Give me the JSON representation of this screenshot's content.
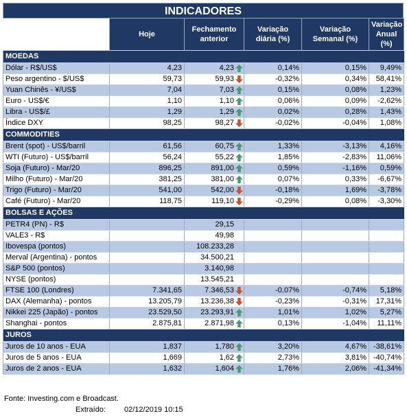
{
  "title": "INDICADORES",
  "headers": {
    "hoje": "Hoje",
    "fechamento": "Fechamento anterior",
    "var_diaria": "Variação diária (%)",
    "var_semanal": "Variação Semanal (%)",
    "var_anual": "Variação Anual (%)"
  },
  "colors": {
    "header_bg": "#1f3864",
    "shade": "#b8c9e3",
    "up": "#4a9a74",
    "down": "#c8502a"
  },
  "sections": [
    {
      "name": "MOEDAS",
      "rows": [
        {
          "label": "Dólar - R$/US$",
          "hoje": "4,23",
          "fech": "4,23",
          "dir": "up",
          "diaria": "0,14%",
          "semanal": "0,15%",
          "anual": "9,49%"
        },
        {
          "label": "Peso argentino - $/US$",
          "hoje": "59,73",
          "fech": "59,93",
          "dir": "down",
          "diaria": "-0,32%",
          "semanal": "0,34%",
          "anual": "58,41%"
        },
        {
          "label": "Yuan Chinês - ¥/US$",
          "hoje": "7,04",
          "fech": "7,03",
          "dir": "up",
          "diaria": "0,15%",
          "semanal": "0,08%",
          "anual": "1,23%"
        },
        {
          "label": "Euro - US$/€",
          "hoje": "1,10",
          "fech": "1,10",
          "dir": "up",
          "diaria": "0,06%",
          "semanal": "0,09%",
          "anual": "-2,62%"
        },
        {
          "label": "Libra - US$/£",
          "hoje": "1,29",
          "fech": "1,29",
          "dir": "up",
          "diaria": "0,02%",
          "semanal": "0,28%",
          "anual": "1,43%"
        },
        {
          "label": "Índice DXY",
          "hoje": "98,25",
          "fech": "98,27",
          "dir": "down",
          "diaria": "-0,02%",
          "semanal": "-0,04%",
          "anual": "1,08%"
        }
      ]
    },
    {
      "name": "COMMODITIES",
      "rows": [
        {
          "label": "Brent (spot) - US$/barril",
          "hoje": "61,56",
          "fech": "60,75",
          "dir": "up",
          "diaria": "1,33%",
          "semanal": "-3,13%",
          "anual": "4,16%"
        },
        {
          "label": "WTI (Futuro) - US$/barril",
          "hoje": "56,24",
          "fech": "55,22",
          "dir": "up",
          "diaria": "1,85%",
          "semanal": "-2,83%",
          "anual": "11,06%"
        },
        {
          "label": "Soja (Futuro) - Mar/20",
          "hoje": "896,25",
          "fech": "891,00",
          "dir": "up",
          "diaria": "0,59%",
          "semanal": "-1,16%",
          "anual": "0,59%"
        },
        {
          "label": "Milho (Futuro) - Mar/20",
          "hoje": "381,25",
          "fech": "381,00",
          "dir": "up",
          "diaria": "0,07%",
          "semanal": "0,33%",
          "anual": "-6,67%"
        },
        {
          "label": "Trigo (Futuro) - Mar/20",
          "hoje": "541,00",
          "fech": "542,00",
          "dir": "down",
          "diaria": "-0,18%",
          "semanal": "1,69%",
          "anual": "-3,78%"
        },
        {
          "label": "Café (Futuro) - Mar/20",
          "hoje": "118,75",
          "fech": "119,10",
          "dir": "down",
          "diaria": "-0,29%",
          "semanal": "0,08%",
          "anual": "-3,30%"
        }
      ]
    },
    {
      "name": "BOLSAS E AÇÕES",
      "rows": [
        {
          "label": "PETR4 (PN) - R$",
          "hoje": "",
          "fech": "29,15",
          "dir": "",
          "diaria": "",
          "semanal": "",
          "anual": ""
        },
        {
          "label": "VALE3 - R$",
          "hoje": "",
          "fech": "49,98",
          "dir": "",
          "diaria": "",
          "semanal": "",
          "anual": ""
        },
        {
          "label": "Ibovespa (pontos)",
          "hoje": "",
          "fech": "108.233,28",
          "dir": "",
          "diaria": "",
          "semanal": "",
          "anual": ""
        },
        {
          "label": "Merval (Argentina) - pontos",
          "hoje": "",
          "fech": "34.500,21",
          "dir": "",
          "diaria": "",
          "semanal": "",
          "anual": ""
        },
        {
          "label": "S&P 500 (pontos)",
          "hoje": "",
          "fech": "3.140,98",
          "dir": "",
          "diaria": "",
          "semanal": "",
          "anual": ""
        },
        {
          "label": "NYSE (pontos)",
          "hoje": "",
          "fech": "13.545,21",
          "dir": "",
          "diaria": "",
          "semanal": "",
          "anual": ""
        },
        {
          "label": "FTSE 100 (Londres)",
          "hoje": "7.341,65",
          "fech": "7.346,53",
          "dir": "down",
          "diaria": "-0,07%",
          "semanal": "-0,74%",
          "anual": "5,18%"
        },
        {
          "label": "DAX (Alemanha) - pontos",
          "hoje": "13.205,79",
          "fech": "13.236,38",
          "dir": "down",
          "diaria": "-0,23%",
          "semanal": "-0,31%",
          "anual": "17,31%"
        },
        {
          "label": "Nikkei 225 (Japão) - pontos",
          "hoje": "23.529,50",
          "fech": "23.293,91",
          "dir": "up",
          "diaria": "1,01%",
          "semanal": "1,02%",
          "anual": "5,27%"
        },
        {
          "label": "Shanghai - pontos",
          "hoje": "2.875,81",
          "fech": "2.871,98",
          "dir": "up",
          "diaria": "0,13%",
          "semanal": "-1,04%",
          "anual": "11,11%"
        }
      ]
    },
    {
      "name": "JUROS",
      "rows": [
        {
          "label": "Juros de 10 anos - EUA",
          "hoje": "1,837",
          "fech": "1,780",
          "dir": "up",
          "diaria": "3,20%",
          "semanal": "4,67%",
          "anual": "-38,61%"
        },
        {
          "label": "Juros de 5 anos - EUA",
          "hoje": "1,669",
          "fech": "1,62",
          "dir": "up",
          "diaria": "2,73%",
          "semanal": "3,81%",
          "anual": "-40,74%"
        },
        {
          "label": "Juros de 2 anos - EUA",
          "hoje": "1,632",
          "fech": "1,604",
          "dir": "up",
          "diaria": "1,76%",
          "semanal": "2,06%",
          "anual": "-41,34%"
        }
      ]
    }
  ],
  "footer": {
    "fonte": "Fonte: Investing.com e Broadcast.",
    "extraido_label": "Extraído:",
    "extraido_value": "02/12/2019 10:15"
  }
}
